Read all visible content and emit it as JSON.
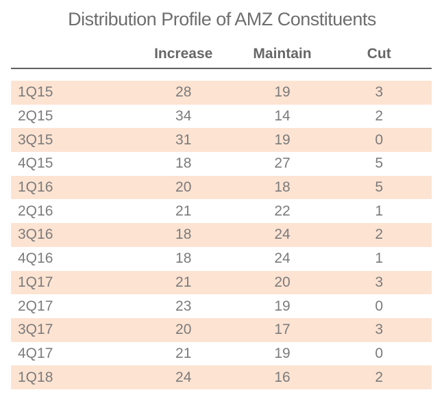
{
  "title": "Distribution Profile of AMZ Constituents",
  "colors": {
    "background": "#ffffff",
    "stripe": "#fde3d2",
    "title_text": "#6e6e6e",
    "header_text": "#676767",
    "body_text": "#7b7b7b",
    "rule": "#5f5f5f"
  },
  "chart_data": {
    "type": "table",
    "title": "Distribution Profile of AMZ Constituents",
    "columns": [
      "",
      "Increase",
      "Maintain",
      "Cut"
    ],
    "rows": [
      [
        "1Q15",
        "28",
        "19",
        "3"
      ],
      [
        "2Q15",
        "34",
        "14",
        "2"
      ],
      [
        "3Q15",
        "31",
        "19",
        "0"
      ],
      [
        "4Q15",
        "18",
        "27",
        "5"
      ],
      [
        "1Q16",
        "20",
        "18",
        "5"
      ],
      [
        "2Q16",
        "21",
        "22",
        "1"
      ],
      [
        "3Q16",
        "18",
        "24",
        "2"
      ],
      [
        "4Q16",
        "18",
        "24",
        "1"
      ],
      [
        "1Q17",
        "21",
        "20",
        "3"
      ],
      [
        "2Q17",
        "23",
        "19",
        "0"
      ],
      [
        "3Q17",
        "20",
        "17",
        "3"
      ],
      [
        "4Q17",
        "21",
        "19",
        "0"
      ],
      [
        "1Q18",
        "24",
        "16",
        "2"
      ]
    ],
    "layout": {
      "striped_rows": "odd",
      "stripe_color": "#fde3d2",
      "header_rule": true,
      "grid": false,
      "value_alignment": "center",
      "row_label_alignment": "left"
    }
  }
}
